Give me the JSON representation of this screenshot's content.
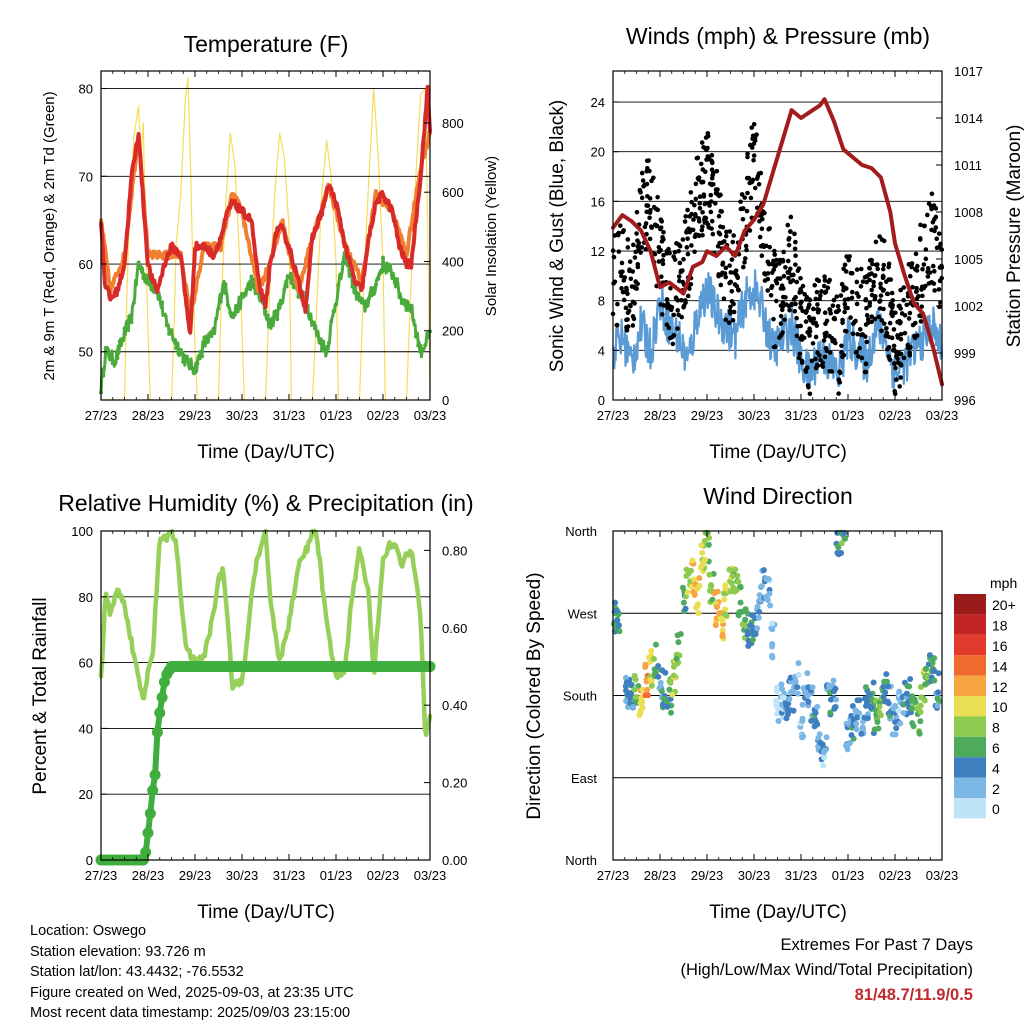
{
  "x_tick_labels": [
    "27/23",
    "28/23",
    "29/23",
    "30/23",
    "31/23",
    "01/23",
    "02/23",
    "03/23"
  ],
  "colors": {
    "temp_red": "#d92a2a",
    "temp_orange": "#f08030",
    "dew_green": "#4aab3c",
    "solar_yellow": "#f7dc5c",
    "sonic_blue": "#5a9bd5",
    "gust_black": "#000000",
    "pressure_maroon": "#a31c1c",
    "rh_green": "#96d05a",
    "precip_green": "#3fae3f"
  },
  "chart_data": [
    {
      "type": "line",
      "title": "Temperature (F)",
      "xlabel": "Time (Day/UTC)",
      "ylabel": "2m & 9m T (Red, Orange) & 2m Td (Green)",
      "ylabel_right": "Solar Insolation (Yellow)",
      "ylim": [
        44.5,
        82
      ],
      "ylim_right": [
        0,
        950
      ],
      "yticks": [
        50,
        60,
        70,
        80
      ],
      "yticks_right": [
        0,
        200,
        400,
        600,
        800
      ],
      "x_days": [
        0,
        0.5,
        1,
        1.5,
        2,
        2.5,
        3,
        3.5,
        4,
        4.5,
        5,
        5.5,
        6,
        6.5,
        7
      ],
      "series": [
        {
          "name": "2m T",
          "color": "#d92a2a",
          "x": [
            0,
            0.08,
            0.2,
            0.35,
            0.5,
            0.65,
            0.8,
            0.9,
            1.0,
            1.1,
            1.2,
            1.35,
            1.5,
            1.7,
            1.8,
            1.9,
            2.0,
            2.2,
            2.4,
            2.55,
            2.7,
            2.8,
            3.0,
            3.2,
            3.35,
            3.5,
            3.6,
            3.75,
            3.85,
            4.0,
            4.2,
            4.35,
            4.5,
            4.7,
            4.85,
            5.0,
            5.2,
            5.4,
            5.55,
            5.7,
            5.85,
            6.0,
            6.2,
            6.35,
            6.5,
            6.6,
            6.8,
            6.95,
            7.0
          ],
          "y": [
            65,
            58,
            56,
            57,
            60,
            70,
            75,
            67,
            60,
            58,
            57,
            60,
            62,
            61,
            56,
            52,
            62,
            62,
            61,
            63,
            66,
            67,
            66,
            65,
            58,
            55,
            60,
            64,
            64,
            62,
            58,
            55,
            63,
            66,
            69,
            67,
            62,
            58,
            57,
            63,
            67,
            68,
            66,
            62,
            60,
            60,
            70,
            80,
            75
          ]
        },
        {
          "name": "9m T",
          "color": "#f08030",
          "x": [
            0,
            0.2,
            0.5,
            0.8,
            1.0,
            1.35,
            1.7,
            1.9,
            2.2,
            2.55,
            2.8,
            3.0,
            3.35,
            3.6,
            3.85,
            4.2,
            4.5,
            4.85,
            5.2,
            5.55,
            5.85,
            6.2,
            6.5,
            6.8,
            7.0
          ],
          "y": [
            65,
            57,
            61,
            75,
            61,
            61,
            61,
            54,
            62,
            62,
            68,
            66,
            57,
            60,
            65,
            57,
            63,
            69,
            62,
            58,
            68,
            66,
            61,
            71,
            75
          ]
        },
        {
          "name": "2m Td",
          "color": "#4aab3c",
          "x": [
            0,
            0.1,
            0.3,
            0.5,
            0.65,
            0.8,
            1.0,
            1.2,
            1.4,
            1.6,
            1.8,
            2.0,
            2.2,
            2.4,
            2.6,
            2.8,
            3.0,
            3.2,
            3.4,
            3.6,
            3.8,
            4.0,
            4.2,
            4.4,
            4.6,
            4.8,
            5.0,
            5.2,
            5.4,
            5.6,
            5.8,
            6.0,
            6.2,
            6.4,
            6.6,
            6.8,
            7.0
          ],
          "y": [
            46,
            50,
            49,
            52,
            54,
            60,
            58,
            57,
            53,
            51,
            49,
            48,
            51,
            52,
            58,
            54,
            56,
            58,
            56,
            53,
            55,
            59,
            57,
            55,
            52,
            50,
            56,
            61,
            57,
            55,
            57,
            60,
            59,
            56,
            55,
            50,
            52
          ]
        }
      ],
      "series_right": [
        {
          "name": "Solar Insolation",
          "color": "#f7dc5c",
          "x": [
            0,
            0.5,
            0.55,
            0.6,
            0.7,
            0.8,
            0.85,
            0.9,
            0.95,
            1.0,
            1.05,
            1.5,
            1.55,
            1.6,
            1.7,
            1.8,
            1.85,
            1.9,
            1.95,
            2.0,
            2.05,
            2.5,
            2.55,
            2.65,
            2.75,
            2.85,
            2.95,
            3.05,
            3.5,
            3.6,
            3.7,
            3.8,
            3.9,
            4.0,
            4.05,
            4.5,
            4.6,
            4.7,
            4.8,
            4.9,
            5.0,
            5.05,
            5.5,
            5.6,
            5.7,
            5.8,
            5.9,
            6.0,
            6.05,
            6.5,
            6.6,
            6.7,
            6.8,
            6.9,
            6.95,
            7.0
          ],
          "y": [
            0,
            0,
            300,
            520,
            760,
            850,
            700,
            800,
            450,
            200,
            0,
            0,
            200,
            450,
            600,
            880,
            930,
            700,
            400,
            150,
            0,
            0,
            250,
            560,
            770,
            680,
            400,
            0,
            0,
            350,
            600,
            770,
            700,
            500,
            0,
            0,
            300,
            600,
            750,
            640,
            400,
            0,
            0,
            370,
            640,
            900,
            700,
            400,
            0,
            0,
            350,
            650,
            880,
            900,
            500,
            0
          ]
        }
      ]
    },
    {
      "type": "line",
      "title": "Winds (mph) & Pressure (mb)",
      "xlabel": "Time (Day/UTC)",
      "ylabel": "Sonic Wind & Gust (Blue, Black)",
      "ylabel_right": "Station Pressure (Maroon)",
      "ylim": [
        0,
        26.5
      ],
      "ylim_right": [
        996,
        1017
      ],
      "yticks": [
        0,
        4,
        8,
        12,
        16,
        20,
        24
      ],
      "yticks_right": [
        996,
        999,
        1002,
        1005,
        1008,
        1011,
        1014,
        1017
      ],
      "series": [
        {
          "name": "Sonic Wind",
          "color": "#5a9bd5",
          "x": [
            0,
            0.2,
            0.4,
            0.6,
            0.8,
            1.0,
            1.2,
            1.4,
            1.6,
            1.8,
            2.0,
            2.2,
            2.4,
            2.6,
            2.8,
            3.0,
            3.2,
            3.4,
            3.6,
            3.8,
            4.0,
            4.2,
            4.4,
            4.6,
            4.8,
            5.0,
            5.2,
            5.4,
            5.6,
            5.8,
            6.0,
            6.2,
            6.4,
            6.6,
            6.8,
            7.0
          ],
          "y": [
            4,
            5,
            3,
            6,
            4,
            8,
            6,
            5,
            3,
            7,
            9,
            7,
            6,
            5,
            8,
            9,
            7,
            4,
            5,
            6,
            3,
            2,
            4,
            3,
            2,
            5,
            4,
            3,
            6,
            5,
            2,
            3,
            4,
            5,
            6,
            4
          ]
        },
        {
          "name": "Gust",
          "color": "#000000",
          "x": [
            0,
            0.2,
            0.4,
            0.6,
            0.8,
            1.0,
            1.2,
            1.4,
            1.6,
            1.8,
            2.0,
            2.2,
            2.4,
            2.6,
            2.8,
            3.0,
            3.2,
            3.4,
            3.6,
            3.8,
            4.0,
            4.2,
            4.4,
            4.6,
            4.8,
            5.0,
            5.2,
            5.4,
            5.6,
            5.8,
            6.0,
            6.2,
            6.4,
            6.6,
            6.8,
            7.0
          ],
          "y": [
            9,
            11,
            8,
            14,
            17,
            11,
            8,
            9,
            12,
            16,
            18,
            15,
            10,
            10,
            15,
            19,
            14,
            8,
            9,
            11,
            6,
            4,
            7,
            6,
            4,
            9,
            7,
            6,
            10,
            9,
            4,
            6,
            8,
            11,
            13,
            9
          ]
        }
      ],
      "series_right": [
        {
          "name": "Station Pressure",
          "color": "#a31c1c",
          "x": [
            0,
            0.2,
            0.4,
            0.6,
            0.8,
            1.0,
            1.2,
            1.5,
            1.7,
            1.9,
            2.0,
            2.2,
            2.4,
            2.6,
            2.8,
            3.0,
            3.2,
            3.4,
            3.6,
            3.8,
            4.0,
            4.2,
            4.4,
            4.5,
            4.7,
            4.9,
            5.1,
            5.3,
            5.5,
            5.7,
            5.9,
            6.0,
            6.2,
            6.4,
            6.6,
            6.8,
            7.0
          ],
          "y": [
            1007,
            1007.8,
            1007.4,
            1006.8,
            1005.5,
            1003.2,
            1003.5,
            1002.8,
            1004.5,
            1004.8,
            1005.5,
            1005.2,
            1005.8,
            1005.2,
            1006.8,
            1007.5,
            1008.5,
            1010.5,
            1012.5,
            1014.5,
            1014,
            1014.4,
            1014.8,
            1015.2,
            1013.8,
            1012,
            1011.5,
            1011,
            1010.8,
            1010.2,
            1008,
            1006,
            1004,
            1002.2,
            1001.5,
            999.5,
            997
          ]
        }
      ]
    },
    {
      "type": "line",
      "title": "Relative Humidity (%) & Precipitation (in)",
      "xlabel": "Time (Day/UTC)",
      "ylabel": "Percent & Total Rainfall",
      "ylim": [
        0,
        100
      ],
      "ylim_right": [
        0,
        0.85
      ],
      "yticks": [
        0,
        20,
        40,
        60,
        80,
        100
      ],
      "yticks_right": [
        0.0,
        0.2,
        0.4,
        0.6,
        0.8
      ],
      "series": [
        {
          "name": "Relative Humidity",
          "color": "#96d05a",
          "x": [
            0,
            0.1,
            0.2,
            0.35,
            0.5,
            0.7,
            0.9,
            1.0,
            1.1,
            1.25,
            1.4,
            1.5,
            1.6,
            1.8,
            2.0,
            2.2,
            2.4,
            2.5,
            2.6,
            2.7,
            2.8,
            3.0,
            3.1,
            3.2,
            3.3,
            3.5,
            3.6,
            3.8,
            4.0,
            4.2,
            4.4,
            4.5,
            4.6,
            4.8,
            5.0,
            5.2,
            5.3,
            5.5,
            5.7,
            5.8,
            6.0,
            6.2,
            6.4,
            6.6,
            6.8,
            6.9,
            7.0
          ],
          "y": [
            55,
            82,
            75,
            82,
            78,
            62,
            48,
            57,
            62,
            98,
            97,
            100,
            96,
            65,
            60,
            62,
            75,
            85,
            88,
            72,
            52,
            55,
            65,
            80,
            90,
            99,
            80,
            60,
            72,
            90,
            95,
            100,
            98,
            72,
            55,
            58,
            75,
            95,
            80,
            55,
            92,
            97,
            90,
            95,
            75,
            37,
            45
          ]
        }
      ],
      "series_right": [
        {
          "name": "Total Precipitation",
          "color": "#3fae3f",
          "x": [
            0,
            0.5,
            0.9,
            0.95,
            1.0,
            1.05,
            1.1,
            1.15,
            1.2,
            1.25,
            1.3,
            1.35,
            1.4,
            1.5,
            1.6,
            2.0,
            3.0,
            4.0,
            5.0,
            6.0,
            7.0
          ],
          "y": [
            0.0,
            0.0,
            0.0,
            0.02,
            0.07,
            0.12,
            0.18,
            0.22,
            0.33,
            0.38,
            0.42,
            0.46,
            0.48,
            0.5,
            0.5,
            0.5,
            0.5,
            0.5,
            0.5,
            0.5,
            0.5
          ]
        }
      ]
    },
    {
      "type": "scatter",
      "title": "Wind Direction",
      "xlabel": "Time (Day/UTC)",
      "ylabel": "Direction (Colored By Speed)",
      "yticks": [
        "North",
        "West",
        "South",
        "East",
        "North"
      ],
      "ylim": [
        0,
        360
      ],
      "colorbar_title": "mph",
      "colorbar_labels": [
        "20+",
        "18",
        "16",
        "14",
        "12",
        "10",
        "8",
        "6",
        "4",
        "2",
        "0"
      ],
      "colorbar_colors": [
        "#9b1b1b",
        "#c42424",
        "#e23a2c",
        "#f06a2e",
        "#f7a443",
        "#eadf53",
        "#8ec950",
        "#4eab5e",
        "#3f7fbf",
        "#7cb6e4",
        "#bfe3f7"
      ],
      "points": {
        "x": [
          0.05,
          0.1,
          0.3,
          0.4,
          0.5,
          0.6,
          0.7,
          0.8,
          0.9,
          1.0,
          1.1,
          1.2,
          1.3,
          1.4,
          1.5,
          1.6,
          1.7,
          1.8,
          1.9,
          2.0,
          2.1,
          2.2,
          2.3,
          2.4,
          2.5,
          2.6,
          2.7,
          2.8,
          2.9,
          3.0,
          3.1,
          3.2,
          3.3,
          3.4,
          3.5,
          3.6,
          3.7,
          3.8,
          3.9,
          4.0,
          4.1,
          4.2,
          4.3,
          4.4,
          4.5,
          4.6,
          4.7,
          4.8,
          4.9,
          5.0,
          5.1,
          5.2,
          5.3,
          5.4,
          5.5,
          5.6,
          5.7,
          5.8,
          5.9,
          6.0,
          6.1,
          6.2,
          6.3,
          6.4,
          6.5,
          6.6,
          6.7,
          6.8,
          6.9
        ],
        "y": [
          270,
          265,
          180,
          185,
          190,
          175,
          200,
          210,
          220,
          195,
          185,
          180,
          200,
          235,
          280,
          300,
          310,
          290,
          330,
          345,
          300,
          275,
          260,
          285,
          300,
          310,
          285,
          260,
          250,
          255,
          270,
          300,
          290,
          240,
          170,
          175,
          160,
          180,
          200,
          150,
          190,
          170,
          160,
          130,
          120,
          175,
          180,
          350,
          355,
          140,
          150,
          160,
          140,
          170,
          175,
          155,
          170,
          185,
          170,
          150,
          165,
          175,
          180,
          160,
          150,
          190,
          210,
          205,
          185
        ],
        "speed": [
          6,
          5,
          4,
          4,
          8,
          10,
          12,
          9,
          6,
          4,
          5,
          6,
          8,
          7,
          6,
          9,
          10,
          11,
          9,
          8,
          7,
          12,
          11,
          10,
          9,
          8,
          6,
          7,
          5,
          4,
          3,
          3,
          2,
          2,
          1,
          2,
          3,
          3,
          2,
          1,
          2,
          3,
          4,
          3,
          2,
          4,
          3,
          5,
          6,
          3,
          4,
          3,
          2,
          4,
          5,
          6,
          7,
          5,
          4,
          3,
          2,
          4,
          5,
          6,
          7,
          8,
          6,
          5,
          4
        ]
      }
    }
  ],
  "footer": {
    "location": "Location: Oswego",
    "elevation": "Station elevation: 93.726 m",
    "latlon": "Station lat/lon: 43.4432; -76.5532",
    "created": "Figure created on Wed, 2025-09-03, at 23:35 UTC",
    "recent": "Most recent data timestamp: 2025/09/03 23:15:00"
  },
  "extremes": {
    "title": "Extremes For Past 7 Days",
    "subtitle": "(High/Low/Max Wind/Total Precipitation)",
    "values": "81/48.7/11.9/0.5"
  }
}
